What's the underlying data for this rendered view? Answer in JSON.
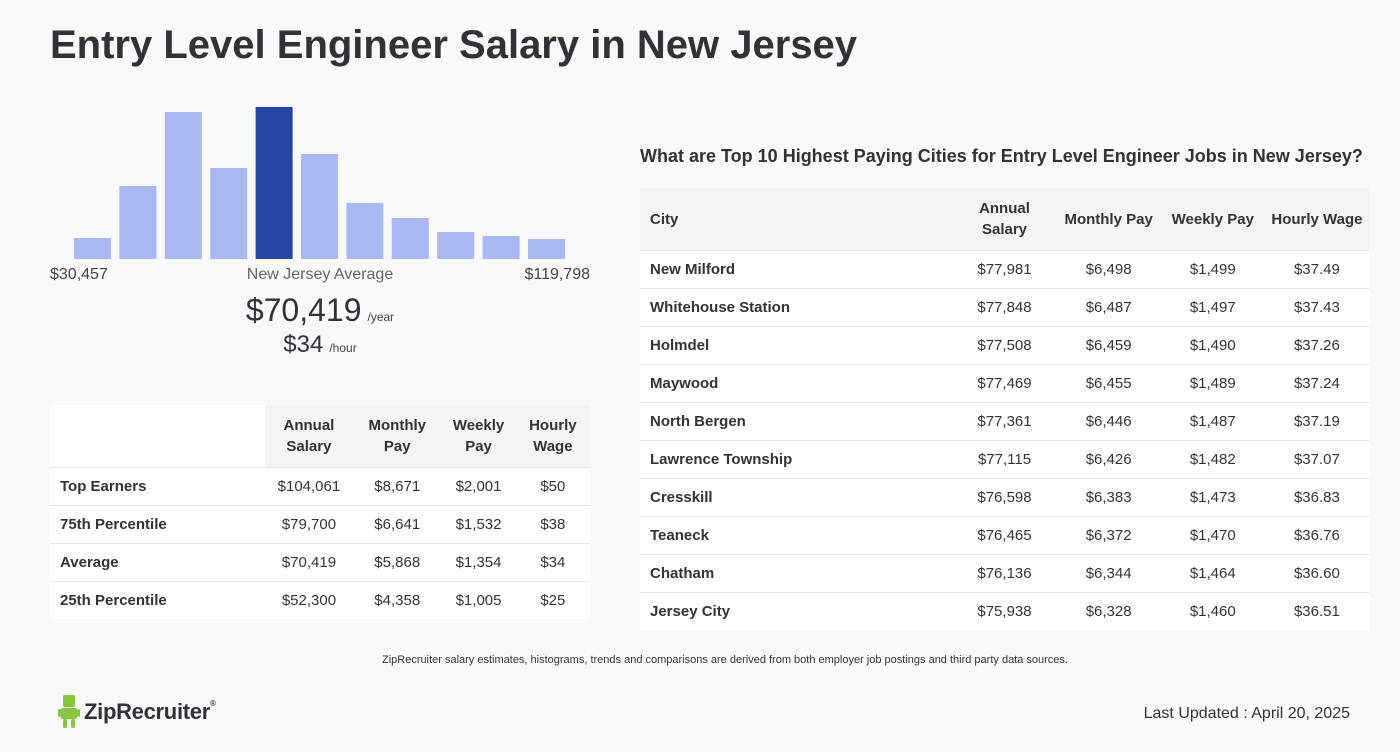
{
  "page": {
    "title": "Entry Level Engineer Salary in New Jersey"
  },
  "histogram": {
    "min_label": "$30,457",
    "max_label": "$119,798",
    "center_label": "New Jersey Average",
    "bars": [
      0.14,
      0.48,
      0.97,
      0.6,
      1.0,
      0.69,
      0.37,
      0.27,
      0.18,
      0.15,
      0.13
    ],
    "highlight_index": 4,
    "bar_color": "#aab8f1",
    "highlight_color": "#2647a3"
  },
  "average": {
    "yearly": "$70,419",
    "yearly_unit": "/year",
    "hourly": "$34",
    "hourly_unit": "/hour"
  },
  "percentile_table": {
    "headers": [
      "Annual Salary",
      "Monthly Pay",
      "Weekly Pay",
      "Hourly Wage"
    ],
    "rows": [
      {
        "label": "Top Earners",
        "values": [
          "$104,061",
          "$8,671",
          "$2,001",
          "$50"
        ]
      },
      {
        "label": "75th Percentile",
        "values": [
          "$79,700",
          "$6,641",
          "$1,532",
          "$38"
        ]
      },
      {
        "label": "Average",
        "values": [
          "$70,419",
          "$5,868",
          "$1,354",
          "$34"
        ]
      },
      {
        "label": "25th Percentile",
        "values": [
          "$52,300",
          "$4,358",
          "$1,005",
          "$25"
        ]
      }
    ]
  },
  "cities": {
    "title": "What are Top 10 Highest Paying Cities for Entry Level Engineer Jobs in New Jersey?",
    "headers": [
      "City",
      "Annual Salary",
      "Monthly Pay",
      "Weekly Pay",
      "Hourly Wage"
    ],
    "rows": [
      {
        "city": "New Milford",
        "values": [
          "$77,981",
          "$6,498",
          "$1,499",
          "$37.49"
        ]
      },
      {
        "city": "Whitehouse Station",
        "values": [
          "$77,848",
          "$6,487",
          "$1,497",
          "$37.43"
        ]
      },
      {
        "city": "Holmdel",
        "values": [
          "$77,508",
          "$6,459",
          "$1,490",
          "$37.26"
        ]
      },
      {
        "city": "Maywood",
        "values": [
          "$77,469",
          "$6,455",
          "$1,489",
          "$37.24"
        ]
      },
      {
        "city": "North Bergen",
        "values": [
          "$77,361",
          "$6,446",
          "$1,487",
          "$37.19"
        ]
      },
      {
        "city": "Lawrence Township",
        "values": [
          "$77,115",
          "$6,426",
          "$1,482",
          "$37.07"
        ]
      },
      {
        "city": "Cresskill",
        "values": [
          "$76,598",
          "$6,383",
          "$1,473",
          "$36.83"
        ]
      },
      {
        "city": "Teaneck",
        "values": [
          "$76,465",
          "$6,372",
          "$1,470",
          "$36.76"
        ]
      },
      {
        "city": "Chatham",
        "values": [
          "$76,136",
          "$6,344",
          "$1,464",
          "$36.60"
        ]
      },
      {
        "city": "Jersey City",
        "values": [
          "$75,938",
          "$6,328",
          "$1,460",
          "$36.51"
        ]
      }
    ]
  },
  "footer": {
    "disclaimer": "ZipRecruiter salary estimates, histograms, trends and comparisons are derived from both employer job postings and third party data sources.",
    "brand": "ZipRecruiter",
    "brand_mark": "®",
    "logo_icon": "ziprecruiter-mascot-icon",
    "brand_color": "#8ac53f",
    "last_updated": "Last Updated : April 20, 2025"
  }
}
